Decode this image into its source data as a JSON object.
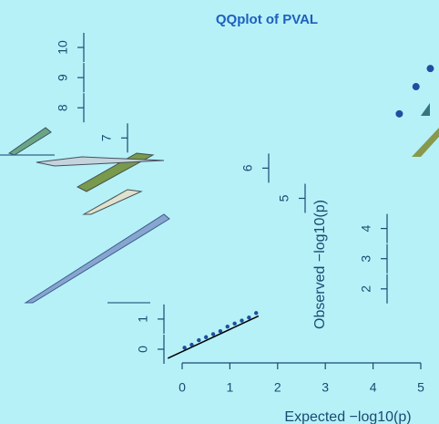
{
  "chart_data": {
    "type": "scatter",
    "title": "QQplot of PVAL",
    "xlabel": "Expected −log10(p)",
    "ylabel": "Observed −log10(p)",
    "x": [
      0.05,
      0.2,
      0.35,
      0.5,
      0.65,
      0.8,
      0.95,
      1.1,
      1.25,
      1.4,
      1.55,
      4.55,
      4.9,
      5.2
    ],
    "y": [
      0.05,
      0.15,
      0.3,
      0.4,
      0.5,
      0.6,
      0.75,
      0.85,
      0.95,
      1.05,
      1.2,
      7.8,
      8.7,
      9.3
    ],
    "color": "#1f4fa0",
    "xlim": [
      0,
      5
    ],
    "xticks": [
      0,
      1,
      2,
      3,
      4,
      5
    ],
    "ylim": [
      0,
      10
    ],
    "yticks": [
      0,
      1,
      2,
      3,
      4,
      5,
      6,
      7,
      8,
      9,
      10
    ]
  }
}
